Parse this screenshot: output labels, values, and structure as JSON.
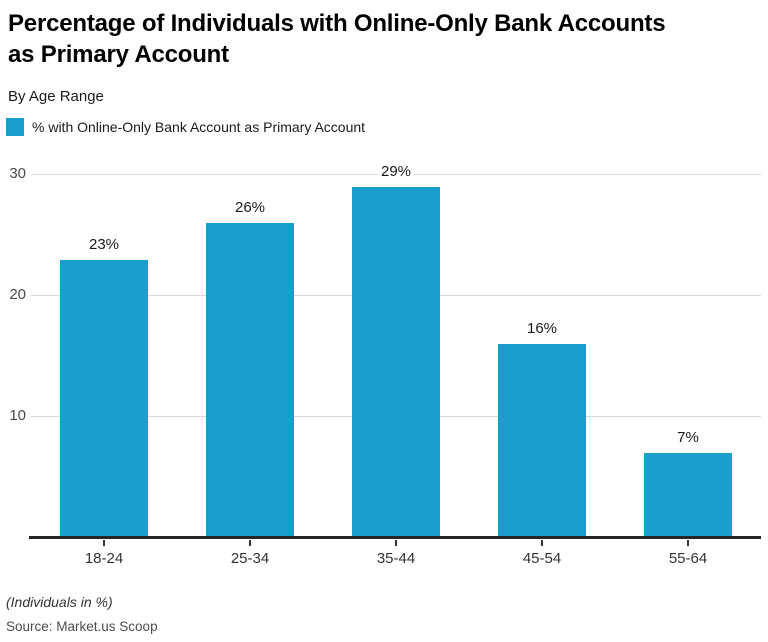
{
  "header": {
    "title_lines": [
      "Percentage of Individuals with Online-Only Bank Accounts",
      "as Primary Account"
    ],
    "subtitle": "By Age Range"
  },
  "legend": {
    "label": "% with Online-Only Bank Account as Primary Account",
    "swatch_color": "#1a9fcd"
  },
  "chart_data": {
    "type": "bar",
    "title": "Percentage of Individuals with Online-Only Bank Accounts as Primary Account",
    "subtitle": "By Age Range",
    "categories": [
      "18-24",
      "25-34",
      "35-44",
      "45-54",
      "55-64"
    ],
    "series": [
      {
        "name": "% with Online-Only Bank Account as Primary Account",
        "values": [
          23,
          26,
          29,
          16,
          7
        ]
      }
    ],
    "value_labels": [
      "23%",
      "26%",
      "29%",
      "16%",
      "7%"
    ],
    "xlabel": "",
    "ylabel": "",
    "ylim": [
      0,
      30
    ],
    "yticks": [
      10,
      20,
      30
    ],
    "grid": "horizontal-solid",
    "legend_position": "top-left",
    "colors": {
      "bar": "#1a9fcd",
      "axis": "#262626",
      "gridline": "#d8d8d8",
      "ytick_text": "#4a4a4a",
      "xtick_text": "#333333",
      "value_label_text": "#1a1a1a"
    }
  },
  "footer": {
    "note": "(Individuals in %)",
    "source": "Source: Market.us Scoop"
  }
}
